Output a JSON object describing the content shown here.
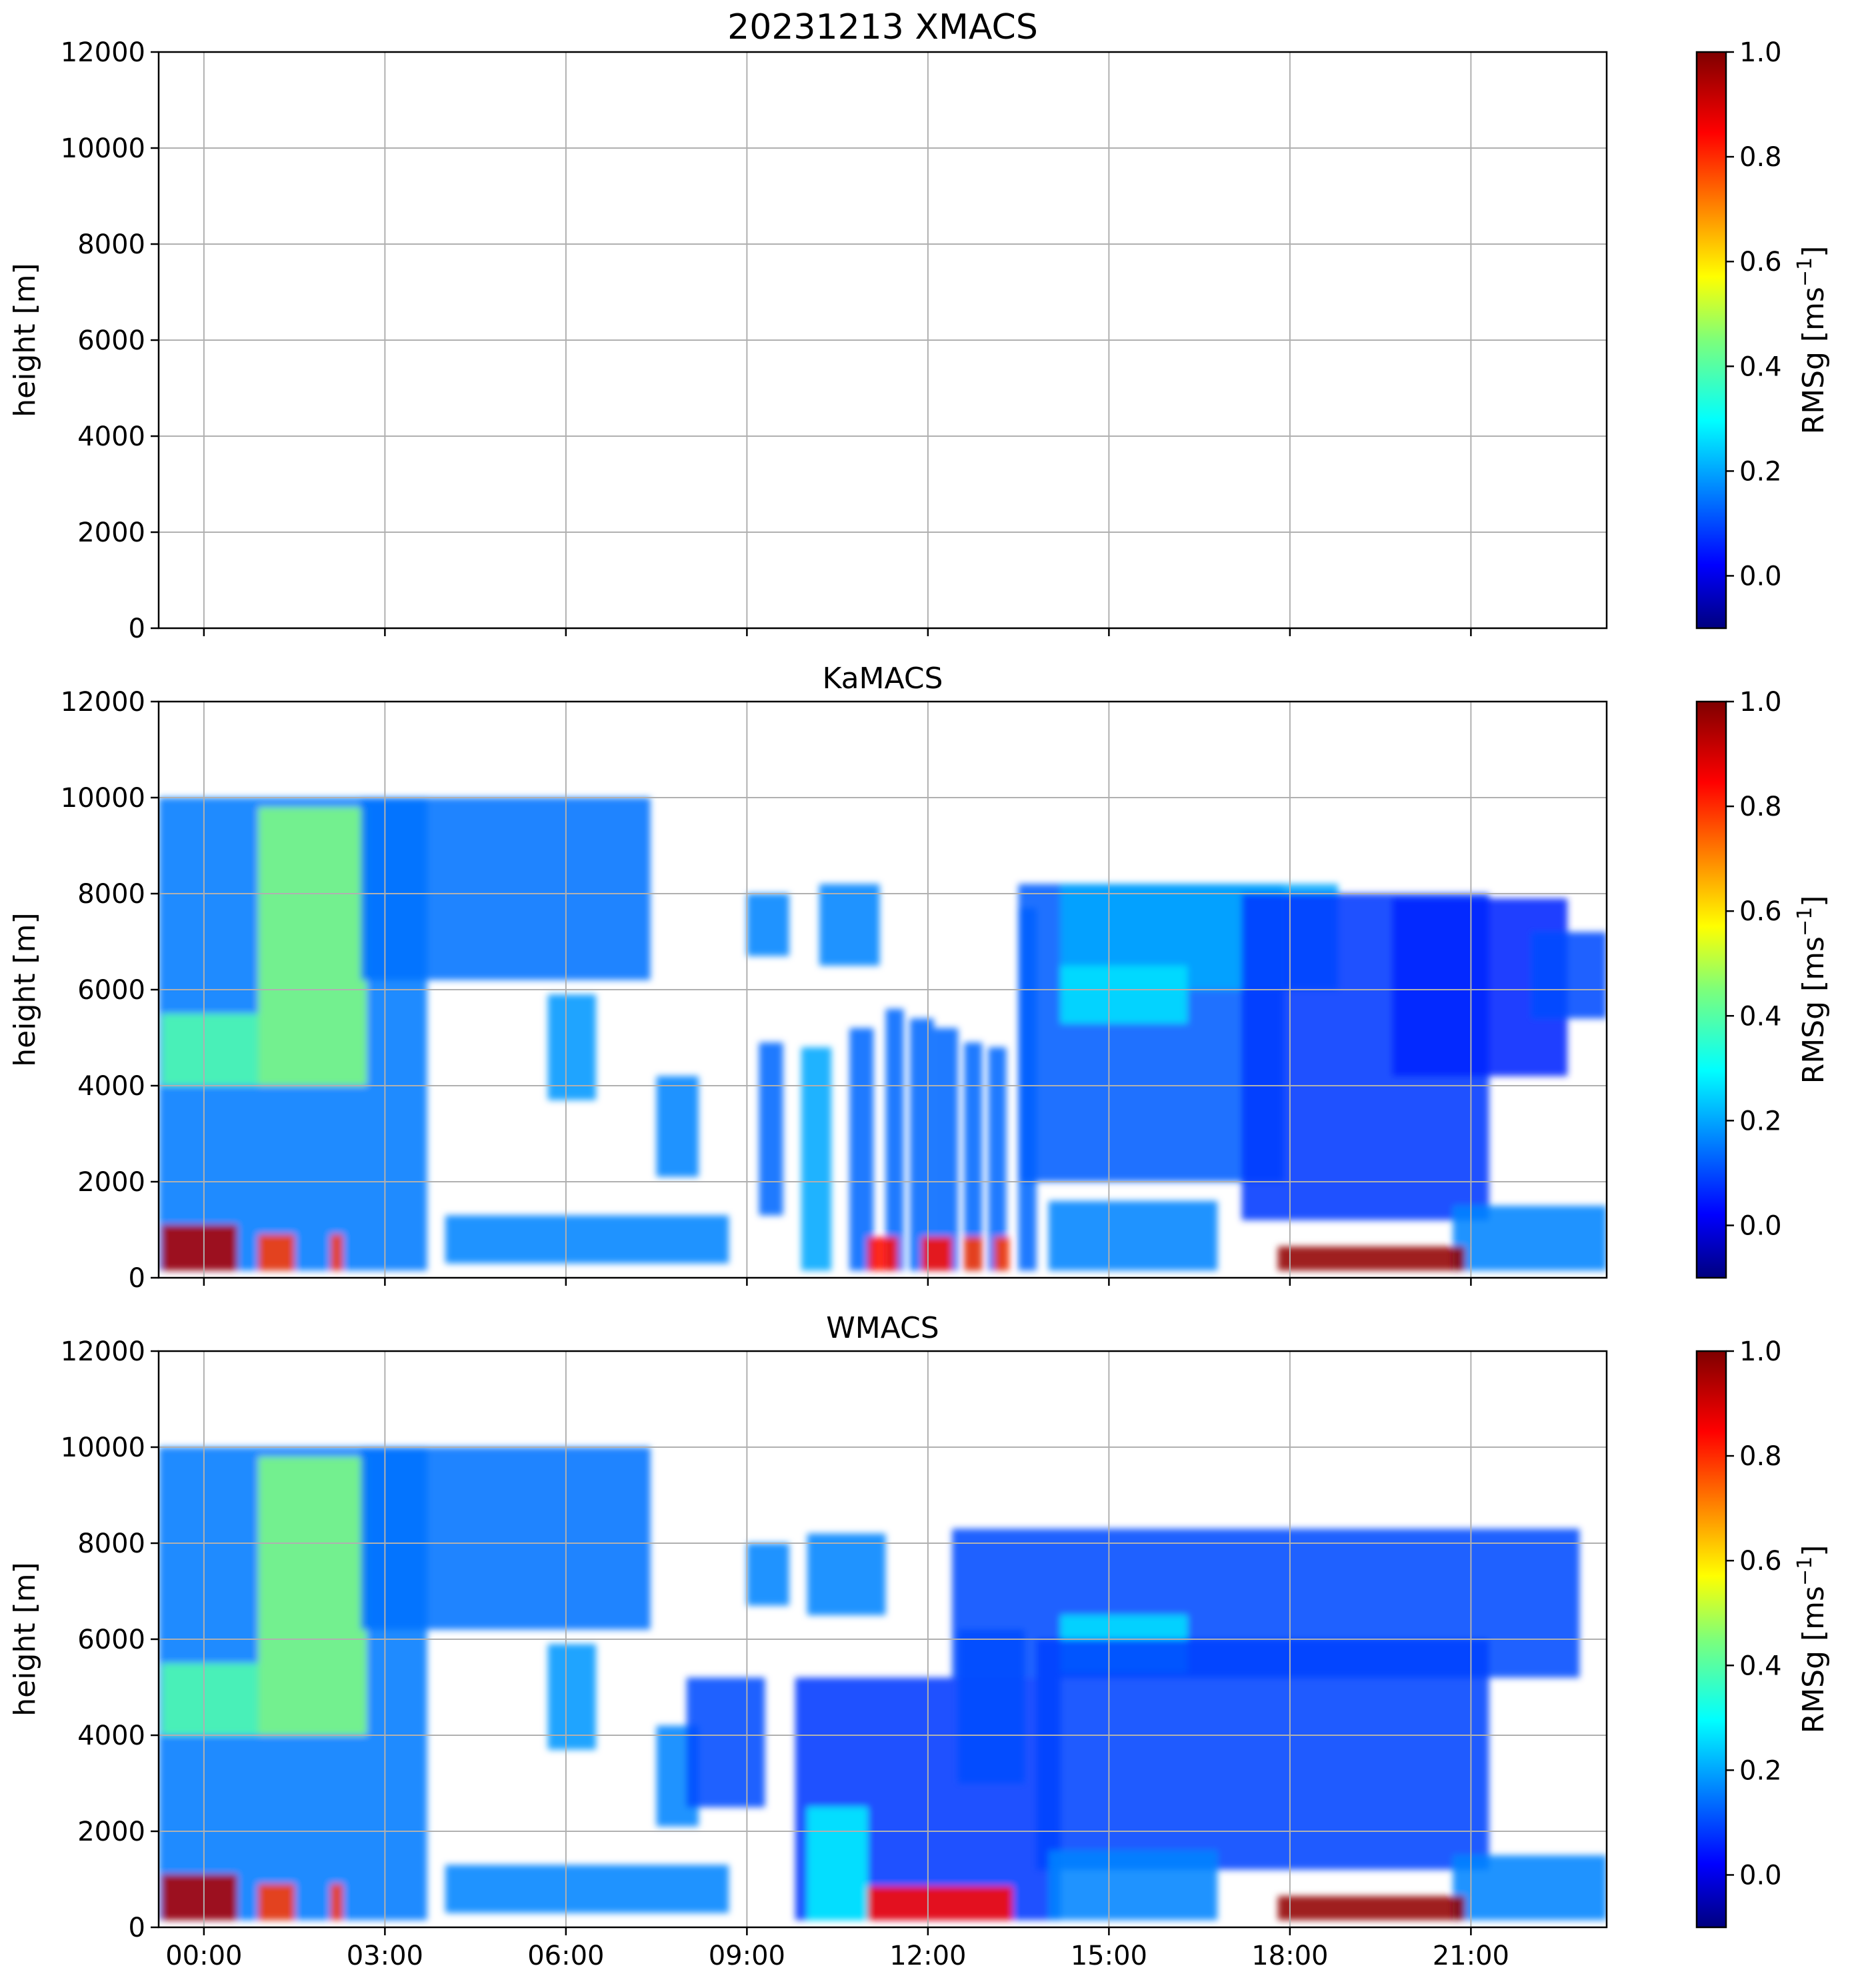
{
  "figure": {
    "colormap": "jet",
    "colorbar": {
      "label_main": "RMSg [ms",
      "label_exp": "−1",
      "label_close": "]",
      "range": [
        -0.1,
        1.0
      ],
      "ticks": [
        0.0,
        0.2,
        0.4,
        0.6,
        0.8,
        1.0
      ],
      "tick_labels": [
        "0.0",
        "0.2",
        "0.4",
        "0.6",
        "0.8",
        "1.0"
      ]
    }
  },
  "chart_data": [
    {
      "type": "heatmap",
      "title": "20231213 XMACS",
      "ylabel": "height [m]",
      "xlabel": "",
      "xlim_hours": [
        -0.75,
        23.25
      ],
      "ylim": [
        0,
        12000
      ],
      "x_ticks": [
        "00:00",
        "03:00",
        "06:00",
        "09:00",
        "12:00",
        "15:00",
        "18:00",
        "21:00"
      ],
      "x_tick_labels_shown": false,
      "y_ticks": [
        "0",
        "2000",
        "4000",
        "6000",
        "8000",
        "10000",
        "12000"
      ],
      "grid": true,
      "echo_regions": []
    },
    {
      "type": "heatmap",
      "title": "KaMACS",
      "ylabel": "height [m]",
      "xlabel": "",
      "xlim_hours": [
        -0.75,
        23.25
      ],
      "ylim": [
        0,
        12000
      ],
      "x_ticks": [
        "00:00",
        "03:00",
        "06:00",
        "09:00",
        "12:00",
        "15:00",
        "18:00",
        "21:00"
      ],
      "x_tick_labels_shown": false,
      "y_ticks": [
        "0",
        "2000",
        "4000",
        "6000",
        "8000",
        "10000",
        "12000"
      ],
      "grid": true,
      "echo_regions": [
        {
          "t": [
            -0.75,
            3.7
          ],
          "h": [
            150,
            10000
          ],
          "v": 0.17
        },
        {
          "t": [
            0.9,
            2.7
          ],
          "h": [
            4000,
            9800
          ],
          "v": 0.45
        },
        {
          "t": [
            -0.7,
            0.9
          ],
          "h": [
            4000,
            5500
          ],
          "v": 0.4
        },
        {
          "t": [
            2.6,
            7.4
          ],
          "h": [
            6200,
            10000
          ],
          "v": 0.16
        },
        {
          "t": [
            4.0,
            8.7
          ],
          "h": [
            300,
            1300
          ],
          "v": 0.18
        },
        {
          "t": [
            5.7,
            6.5
          ],
          "h": [
            3700,
            5900
          ],
          "v": 0.2
        },
        {
          "t": [
            7.5,
            8.2
          ],
          "h": [
            2100,
            4200
          ],
          "v": 0.18
        },
        {
          "t": [
            9.0,
            9.7
          ],
          "h": [
            6700,
            8000
          ],
          "v": 0.18
        },
        {
          "t": [
            9.2,
            9.6
          ],
          "h": [
            1300,
            4900
          ],
          "v": 0.15
        },
        {
          "t": [
            10.2,
            11.2
          ],
          "h": [
            6500,
            8200
          ],
          "v": 0.18
        },
        {
          "t": [
            9.9,
            10.4
          ],
          "h": [
            150,
            4800
          ],
          "v": 0.22
        },
        {
          "t": [
            10.7,
            11.1
          ],
          "h": [
            150,
            5200
          ],
          "v": 0.15
        },
        {
          "t": [
            11.3,
            11.6
          ],
          "h": [
            150,
            5600
          ],
          "v": 0.15
        },
        {
          "t": [
            11.7,
            12.1
          ],
          "h": [
            150,
            5400
          ],
          "v": 0.15
        },
        {
          "t": [
            12.1,
            12.5
          ],
          "h": [
            150,
            5200
          ],
          "v": 0.15
        },
        {
          "t": [
            12.6,
            12.9
          ],
          "h": [
            150,
            4900
          ],
          "v": 0.15
        },
        {
          "t": [
            13.0,
            13.3
          ],
          "h": [
            150,
            4800
          ],
          "v": 0.15
        },
        {
          "t": [
            13.5,
            13.8
          ],
          "h": [
            150,
            7700
          ],
          "v": 0.15
        },
        {
          "t": [
            13.5,
            17.9
          ],
          "h": [
            2000,
            8200
          ],
          "v": 0.14
        },
        {
          "t": [
            14.2,
            18.8
          ],
          "h": [
            6000,
            8200
          ],
          "v": 0.22
        },
        {
          "t": [
            14.2,
            16.3
          ],
          "h": [
            5300,
            6500
          ],
          "v": 0.28
        },
        {
          "t": [
            17.2,
            21.3
          ],
          "h": [
            1200,
            8000
          ],
          "v": 0.1
        },
        {
          "t": [
            19.7,
            22.6
          ],
          "h": [
            4200,
            7900
          ],
          "v": 0.08
        },
        {
          "t": [
            20.7,
            23.25
          ],
          "h": [
            150,
            1500
          ],
          "v": 0.18
        },
        {
          "t": [
            22.0,
            23.25
          ],
          "h": [
            5400,
            7200
          ],
          "v": 0.12
        },
        {
          "t": [
            14.0,
            16.8
          ],
          "h": [
            150,
            1600
          ],
          "v": 0.18
        },
        {
          "t": [
            -0.7,
            0.55
          ],
          "h": [
            150,
            1100
          ],
          "v": 0.95
        },
        {
          "t": [
            0.9,
            1.5
          ],
          "h": [
            150,
            900
          ],
          "v": 0.8
        },
        {
          "t": [
            2.1,
            2.3
          ],
          "h": [
            150,
            900
          ],
          "v": 0.8
        },
        {
          "t": [
            11.0,
            11.5
          ],
          "h": [
            150,
            850
          ],
          "v": 0.85
        },
        {
          "t": [
            11.9,
            12.4
          ],
          "h": [
            150,
            850
          ],
          "v": 0.85
        },
        {
          "t": [
            12.6,
            12.9
          ],
          "h": [
            150,
            850
          ],
          "v": 0.8
        },
        {
          "t": [
            13.1,
            13.35
          ],
          "h": [
            150,
            850
          ],
          "v": 0.8
        },
        {
          "t": [
            17.8,
            20.9
          ],
          "h": [
            150,
            650
          ],
          "v": 0.98
        }
      ]
    },
    {
      "type": "heatmap",
      "title": "WMACS",
      "ylabel": "height [m]",
      "xlabel": "",
      "xlim_hours": [
        -0.75,
        23.25
      ],
      "ylim": [
        0,
        12000
      ],
      "x_ticks": [
        "00:00",
        "03:00",
        "06:00",
        "09:00",
        "12:00",
        "15:00",
        "18:00",
        "21:00"
      ],
      "x_tick_labels_shown": true,
      "y_ticks": [
        "0",
        "2000",
        "4000",
        "6000",
        "8000",
        "10000",
        "12000"
      ],
      "grid": true,
      "echo_regions": [
        {
          "t": [
            -0.75,
            3.7
          ],
          "h": [
            150,
            10000
          ],
          "v": 0.17
        },
        {
          "t": [
            0.9,
            2.7
          ],
          "h": [
            4000,
            9800
          ],
          "v": 0.45
        },
        {
          "t": [
            -0.7,
            0.9
          ],
          "h": [
            4000,
            5500
          ],
          "v": 0.4
        },
        {
          "t": [
            2.6,
            7.4
          ],
          "h": [
            6200,
            10000
          ],
          "v": 0.16
        },
        {
          "t": [
            4.0,
            8.7
          ],
          "h": [
            300,
            1300
          ],
          "v": 0.18
        },
        {
          "t": [
            5.7,
            6.5
          ],
          "h": [
            3700,
            5900
          ],
          "v": 0.2
        },
        {
          "t": [
            7.5,
            8.2
          ],
          "h": [
            2100,
            4200
          ],
          "v": 0.18
        },
        {
          "t": [
            8.0,
            9.3
          ],
          "h": [
            2500,
            5200
          ],
          "v": 0.12
        },
        {
          "t": [
            9.0,
            9.7
          ],
          "h": [
            6700,
            8000
          ],
          "v": 0.18
        },
        {
          "t": [
            10.0,
            11.3
          ],
          "h": [
            6500,
            8200
          ],
          "v": 0.18
        },
        {
          "t": [
            9.8,
            14.2
          ],
          "h": [
            150,
            5200
          ],
          "v": 0.1
        },
        {
          "t": [
            10.0,
            11.0
          ],
          "h": [
            150,
            2500
          ],
          "v": 0.3
        },
        {
          "t": [
            12.5,
            13.6
          ],
          "h": [
            3000,
            6200
          ],
          "v": 0.12
        },
        {
          "t": [
            12.4,
            22.8
          ],
          "h": [
            5200,
            8300
          ],
          "v": 0.12
        },
        {
          "t": [
            14.2,
            16.3
          ],
          "h": [
            5300,
            6500
          ],
          "v": 0.28
        },
        {
          "t": [
            13.8,
            21.3
          ],
          "h": [
            1200,
            6000
          ],
          "v": 0.11
        },
        {
          "t": [
            20.7,
            23.25
          ],
          "h": [
            150,
            1500
          ],
          "v": 0.18
        },
        {
          "t": [
            14.0,
            16.8
          ],
          "h": [
            150,
            1600
          ],
          "v": 0.18
        },
        {
          "t": [
            -0.7,
            0.55
          ],
          "h": [
            150,
            1100
          ],
          "v": 0.95
        },
        {
          "t": [
            0.9,
            1.5
          ],
          "h": [
            150,
            900
          ],
          "v": 0.8
        },
        {
          "t": [
            2.1,
            2.3
          ],
          "h": [
            150,
            900
          ],
          "v": 0.8
        },
        {
          "t": [
            11.0,
            13.4
          ],
          "h": [
            150,
            850
          ],
          "v": 0.85
        },
        {
          "t": [
            17.8,
            20.9
          ],
          "h": [
            150,
            650
          ],
          "v": 0.98
        }
      ]
    }
  ]
}
